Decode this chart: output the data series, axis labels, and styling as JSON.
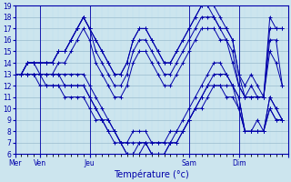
{
  "xlabel": "Température (°c)",
  "ylim": [
    6,
    19
  ],
  "xlim": [
    0,
    44
  ],
  "yticks": [
    6,
    7,
    8,
    9,
    10,
    11,
    12,
    13,
    14,
    15,
    16,
    17,
    18,
    19
  ],
  "bg_color": "#cce5ee",
  "line_color": "#0000aa",
  "grid_major_color": "#99bbcc",
  "grid_minor_color": "#bbddee",
  "day_tick_positions": [
    0,
    4,
    12,
    28,
    36,
    44
  ],
  "day_tick_labels": [
    "Mer",
    "Ven",
    "Jeu",
    "Sam",
    "Dim",
    ""
  ],
  "vline_positions": [
    0,
    4,
    12,
    28,
    36
  ],
  "series": [
    [
      13,
      13,
      14,
      14,
      14,
      14,
      14,
      15,
      15,
      16,
      17,
      18,
      17,
      16,
      15,
      14,
      13,
      13,
      14,
      16,
      17,
      17,
      16,
      15,
      14,
      14,
      15,
      16,
      17,
      18,
      19,
      19,
      19,
      18,
      17,
      16,
      13,
      12,
      13,
      12,
      11,
      18,
      17,
      17
    ],
    [
      13,
      13,
      14,
      14,
      14,
      14,
      14,
      15,
      15,
      16,
      17,
      18,
      17,
      16,
      15,
      14,
      13,
      13,
      14,
      16,
      17,
      17,
      16,
      15,
      14,
      14,
      15,
      16,
      17,
      18,
      19,
      19,
      18,
      17,
      17,
      16,
      13,
      11,
      12,
      11,
      11,
      17,
      17,
      17
    ],
    [
      13,
      13,
      14,
      14,
      14,
      14,
      14,
      15,
      15,
      16,
      17,
      18,
      17,
      15,
      14,
      13,
      12,
      12,
      13,
      15,
      16,
      16,
      15,
      14,
      13,
      13,
      14,
      15,
      16,
      17,
      18,
      18,
      18,
      17,
      16,
      15,
      12,
      11,
      11,
      11,
      11,
      16,
      16,
      12
    ],
    [
      13,
      13,
      14,
      14,
      13,
      13,
      13,
      14,
      14,
      15,
      16,
      17,
      16,
      14,
      13,
      12,
      11,
      11,
      12,
      14,
      15,
      15,
      14,
      13,
      12,
      12,
      13,
      14,
      15,
      16,
      17,
      17,
      17,
      16,
      16,
      14,
      12,
      11,
      11,
      11,
      11,
      15,
      14,
      12
    ],
    [
      13,
      13,
      13,
      13,
      13,
      13,
      13,
      13,
      13,
      13,
      13,
      13,
      12,
      11,
      10,
      9,
      8,
      7,
      7,
      8,
      8,
      8,
      7,
      7,
      7,
      8,
      8,
      9,
      10,
      11,
      12,
      13,
      14,
      14,
      13,
      12,
      11,
      8,
      8,
      9,
      8,
      11,
      10,
      9
    ],
    [
      13,
      13,
      13,
      13,
      13,
      13,
      13,
      13,
      12,
      12,
      12,
      12,
      11,
      10,
      9,
      9,
      8,
      7,
      7,
      7,
      7,
      7,
      7,
      7,
      7,
      7,
      8,
      8,
      9,
      10,
      11,
      12,
      13,
      13,
      13,
      12,
      11,
      8,
      8,
      8,
      8,
      11,
      10,
      9
    ],
    [
      13,
      13,
      13,
      13,
      13,
      12,
      12,
      12,
      12,
      12,
      12,
      12,
      11,
      10,
      9,
      8,
      8,
      7,
      6,
      6,
      7,
      7,
      6,
      6,
      6,
      7,
      7,
      8,
      9,
      10,
      11,
      12,
      12,
      12,
      12,
      12,
      10,
      8,
      8,
      8,
      8,
      10,
      9,
      9
    ],
    [
      13,
      13,
      13,
      13,
      12,
      12,
      12,
      12,
      11,
      11,
      11,
      11,
      10,
      9,
      9,
      8,
      7,
      7,
      6,
      6,
      6,
      7,
      6,
      6,
      6,
      7,
      7,
      8,
      9,
      10,
      10,
      11,
      12,
      12,
      11,
      11,
      10,
      8,
      8,
      8,
      8,
      10,
      9,
      9
    ]
  ]
}
